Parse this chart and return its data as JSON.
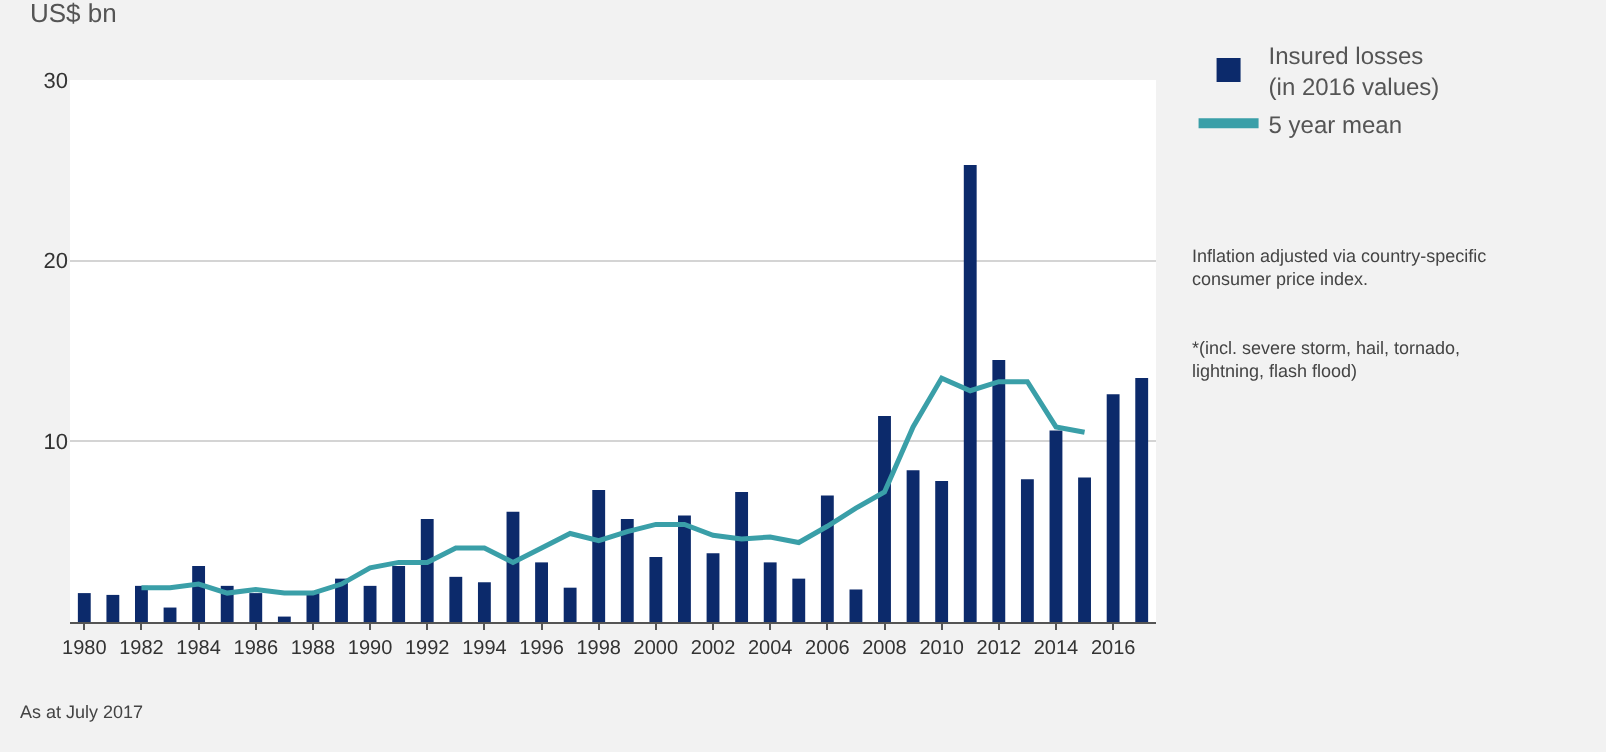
{
  "chart_data": {
    "type": "bar",
    "ylabel": "US$ bn",
    "x": [
      1980,
      1981,
      1982,
      1983,
      1984,
      1985,
      1986,
      1987,
      1988,
      1989,
      1990,
      1991,
      1992,
      1993,
      1994,
      1995,
      1996,
      1997,
      1998,
      1999,
      2000,
      2001,
      2002,
      2003,
      2004,
      2005,
      2006,
      2007,
      2008,
      2009,
      2010,
      2011,
      2012,
      2013,
      2014,
      2015,
      2016,
      2017
    ],
    "series": [
      {
        "name": "Insured losses\n(in 2016 values)",
        "color": "#0c2a6b",
        "values": [
          1.6,
          1.5,
          2.0,
          0.8,
          3.1,
          2.0,
          1.6,
          0.3,
          1.6,
          2.4,
          2.0,
          3.1,
          5.7,
          2.5,
          2.2,
          6.1,
          3.3,
          1.9,
          7.3,
          5.7,
          3.6,
          5.9,
          3.8,
          7.2,
          3.3,
          2.4,
          7.0,
          1.8,
          11.4,
          8.4,
          7.8,
          25.3,
          14.5,
          7.9,
          10.6,
          8.0,
          12.6,
          13.5
        ]
      },
      {
        "name": "5 year mean",
        "type": "line",
        "color": "#3a9fa8",
        "x": [
          1982,
          1983,
          1984,
          1985,
          1986,
          1987,
          1988,
          1989,
          1990,
          1991,
          1992,
          1993,
          1994,
          1995,
          1996,
          1997,
          1998,
          1999,
          2000,
          2001,
          2002,
          2003,
          2004,
          2005,
          2006,
          2007,
          2008,
          2009,
          2010,
          2011,
          2012,
          2013,
          2014,
          2015
        ],
        "values": [
          1.9,
          1.9,
          2.1,
          1.6,
          1.8,
          1.6,
          1.6,
          2.1,
          3.0,
          3.3,
          3.3,
          4.1,
          4.1,
          3.3,
          4.1,
          4.9,
          4.5,
          5.0,
          5.4,
          5.4,
          4.8,
          4.6,
          4.7,
          4.4,
          5.3,
          6.3,
          7.2,
          10.8,
          13.5,
          12.8,
          13.3,
          13.3,
          10.8,
          10.5
        ]
      }
    ],
    "xlim": [
      1979.5,
      2017.5
    ],
    "xticks": [
      1980,
      1982,
      1984,
      1986,
      1988,
      1990,
      1992,
      1994,
      1996,
      1998,
      2000,
      2002,
      2004,
      2006,
      2008,
      2010,
      2012,
      2014,
      2016
    ],
    "ylim": [
      0,
      30
    ],
    "yticks": [
      {
        "value": 0,
        "label": null
      },
      10,
      20,
      30
    ],
    "grid": "y",
    "legend": "right",
    "marker": "none",
    "annotations": [
      "Inflation adjusted via country-specific\nconsumer price index.",
      "*(incl. severe storm, hail, tornado,\nlightning, flash flood)",
      "As at July 2017"
    ]
  }
}
